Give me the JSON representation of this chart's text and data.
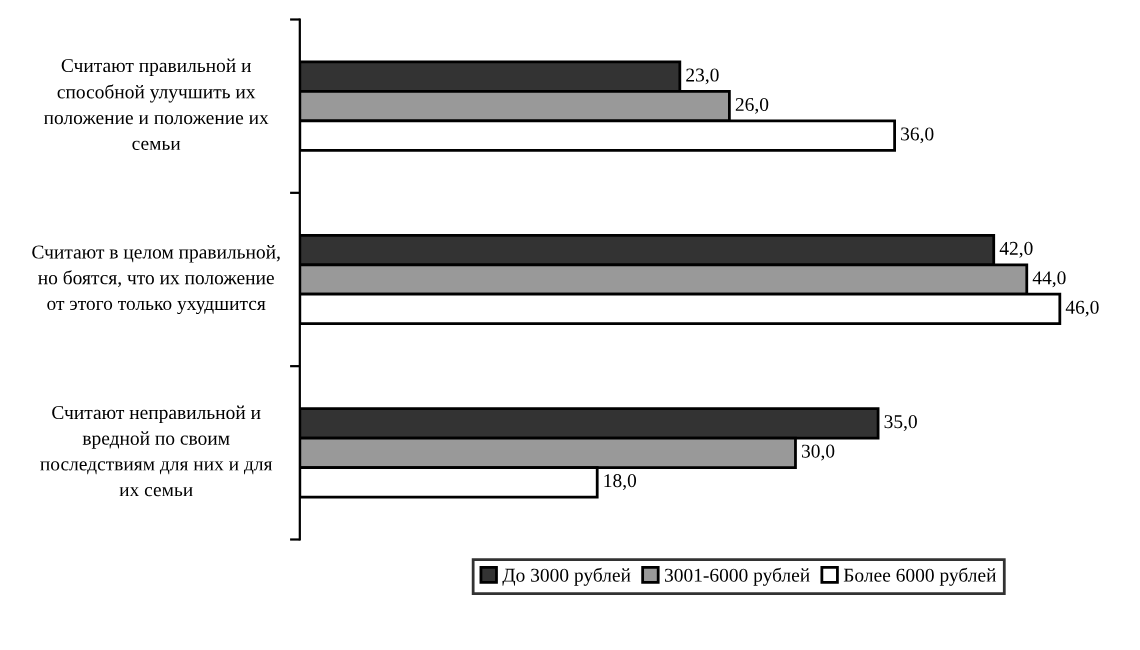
{
  "chart_data": {
    "type": "bar",
    "orientation": "horizontal",
    "categories": [
      "Считают правильной и способной улучшить их положение и положение их семьи",
      "Считают в целом правильной, но боятся, что их положение от этого только ухудшится",
      "Считают неправильной и вредной по своим последствиям для них и для их семьи"
    ],
    "series": [
      {
        "name": "До 3000 рублей",
        "color": "#333333",
        "values": [
          23.0,
          42.0,
          35.0
        ],
        "value_labels": [
          "23,0",
          "42,0",
          "35,0"
        ]
      },
      {
        "name": "3001-6000 рублей",
        "color": "#999999",
        "values": [
          26.0,
          44.0,
          30.0
        ],
        "value_labels": [
          "26,0",
          "44,0",
          "30,0"
        ]
      },
      {
        "name": "Более 6000 рублей",
        "color": "#ffffff",
        "values": [
          36.0,
          46.0,
          18.0
        ],
        "value_labels": [
          "36,0",
          "46,0",
          "18,0"
        ]
      }
    ],
    "legend": "bottom",
    "grid": false
  }
}
